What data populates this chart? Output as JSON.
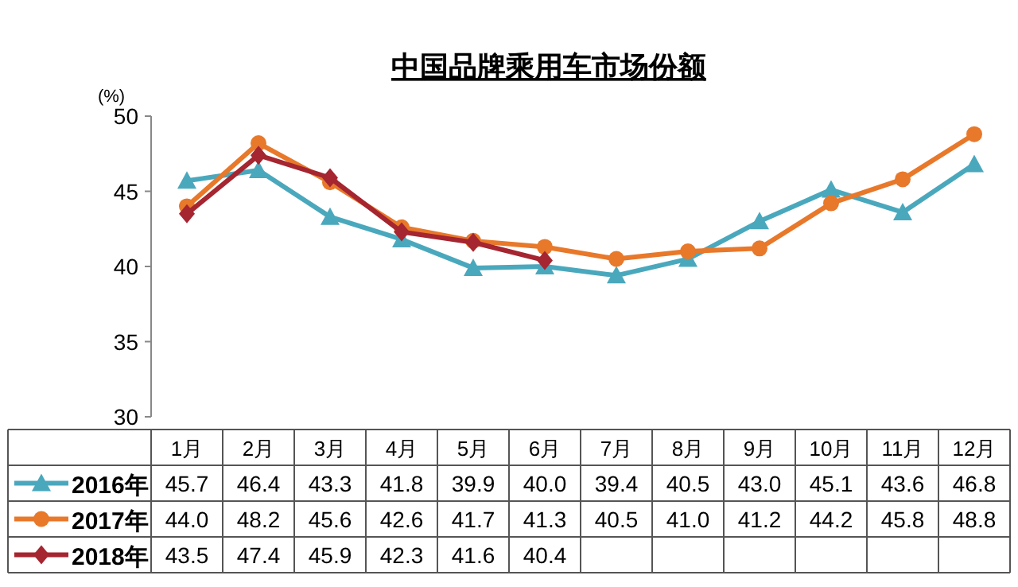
{
  "chart_data": {
    "type": "line",
    "title": "中国品牌乘用车市场份额",
    "ylabel": "(%)",
    "categories": [
      "1月",
      "2月",
      "3月",
      "4月",
      "5月",
      "6月",
      "7月",
      "8月",
      "9月",
      "10月",
      "11月",
      "12月"
    ],
    "ylim": [
      30,
      50
    ],
    "yticks": [
      30,
      35,
      40,
      45,
      50
    ],
    "legend": "bottom left",
    "series": [
      {
        "name": "2016年",
        "color": "#4aa8bd",
        "marker": "triangle",
        "values": [
          45.7,
          46.4,
          43.3,
          41.8,
          39.9,
          40.0,
          39.4,
          40.5,
          43.0,
          45.1,
          43.6,
          46.8
        ],
        "value_labels": [
          "45.7",
          "46.4",
          "43.3",
          "41.8",
          "39.9",
          "40.0",
          "39.4",
          "40.5",
          "43.0",
          "45.1",
          "43.6",
          "46.8"
        ]
      },
      {
        "name": "2017年",
        "color": "#e8782a",
        "marker": "circle",
        "values": [
          44.0,
          48.2,
          45.6,
          42.6,
          41.7,
          41.3,
          40.5,
          41.0,
          41.2,
          44.2,
          45.8,
          48.8
        ],
        "value_labels": [
          "44.0",
          "48.2",
          "45.6",
          "42.6",
          "41.7",
          "41.3",
          "40.5",
          "41.0",
          "41.2",
          "44.2",
          "45.8",
          "48.8"
        ]
      },
      {
        "name": "2018年",
        "color": "#a52530",
        "marker": "diamond",
        "values": [
          43.5,
          47.4,
          45.9,
          42.3,
          41.6,
          40.4,
          null,
          null,
          null,
          null,
          null,
          null
        ],
        "value_labels": [
          "43.5",
          "47.4",
          "45.9",
          "42.3",
          "41.6",
          "40.4",
          null,
          null,
          null,
          null,
          null,
          null
        ]
      }
    ]
  }
}
